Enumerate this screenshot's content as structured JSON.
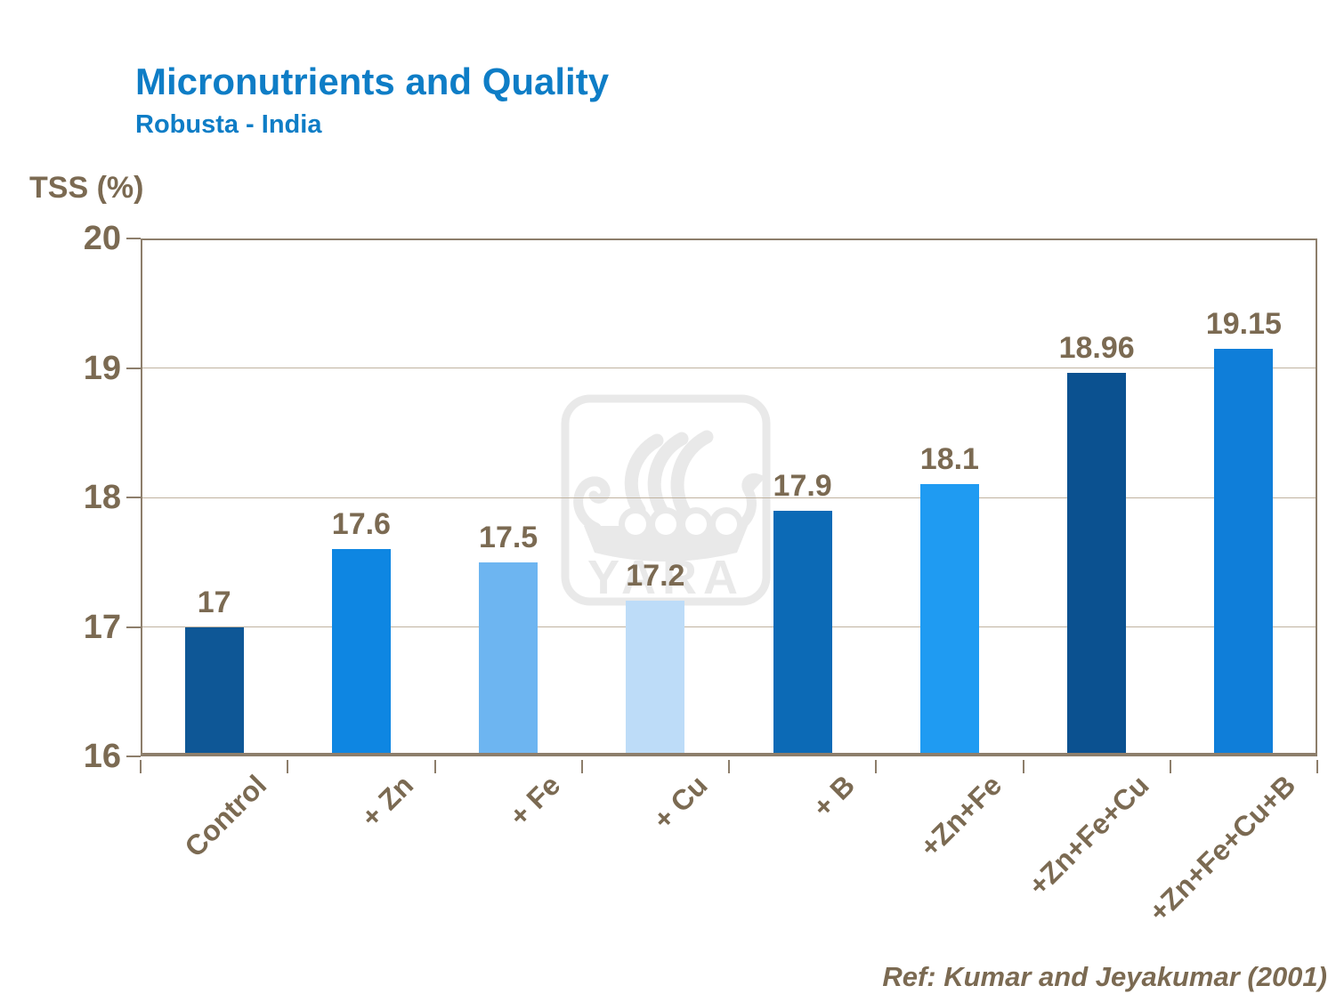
{
  "header": {
    "title": "Micronutrients and Quality",
    "subtitle": "Robusta - India"
  },
  "footer": {
    "reference": "Ref: Kumar and Jeyakumar (2001)"
  },
  "watermark": {
    "text": "YARA",
    "icon": "viking-ship-logo"
  },
  "colors": {
    "title_blue": "#0e7dc6",
    "text_brown": "#7b6a52",
    "axis_brown": "#8d7e6b",
    "gridline_tan": "#c0b3a0",
    "watermark_gray": "#e9e9e9"
  },
  "chart_data": {
    "type": "bar",
    "title": "Micronutrients and Quality",
    "subtitle": "Robusta - India",
    "xlabel": "",
    "ylabel": "TSS (%)",
    "ylim": [
      16,
      20
    ],
    "yticks": [
      20,
      19,
      18,
      17,
      16
    ],
    "grid": true,
    "legend": "none",
    "categories": [
      "Control",
      "+ Zn",
      "+ Fe",
      "+ Cu",
      "+ B",
      "+Zn+Fe",
      "+Zn+Fe+Cu",
      "+Zn+Fe+Cu+B"
    ],
    "values": [
      17,
      17.6,
      17.5,
      17.2,
      17.9,
      18.1,
      18.96,
      19.15
    ],
    "value_labels": [
      "17",
      "17.6",
      "17.5",
      "17.2",
      "17.9",
      "18.1",
      "18.96",
      "19.15"
    ],
    "bar_colors": [
      "#0e5796",
      "#0e86e2",
      "#6db5f1",
      "#bddcf8",
      "#0c6ab6",
      "#1f9bf2",
      "#0b5190",
      "#0f7ed9"
    ]
  }
}
